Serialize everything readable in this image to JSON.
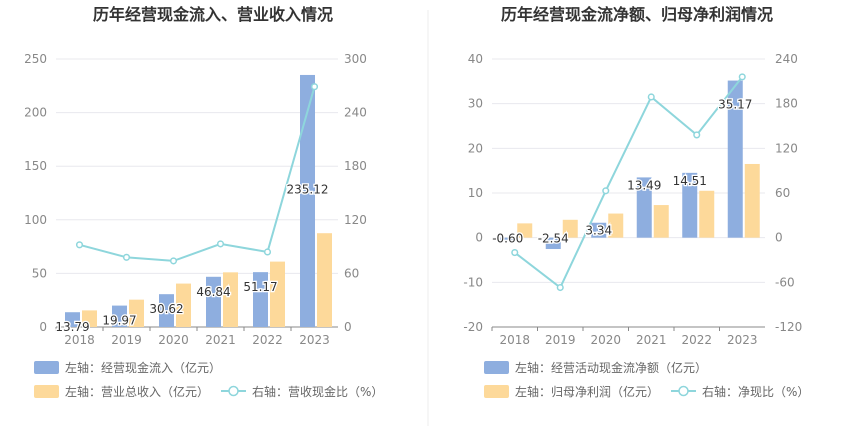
{
  "colors": {
    "bar_primary": "#8eaedf",
    "bar_secondary": "#fdd99a",
    "line": "#8ed6dc",
    "grid": "#e8e8ee",
    "axis": "#888888"
  },
  "chart_data": [
    {
      "type": "bar",
      "title": "历年经营现金流入、营业收入情况",
      "categories": [
        "2018",
        "2019",
        "2020",
        "2021",
        "2022",
        "2023"
      ],
      "left_axis": {
        "ticks": [
          0,
          50,
          100,
          150,
          200,
          250
        ],
        "ylim": [
          0,
          250
        ]
      },
      "right_axis": {
        "ticks": [
          0,
          60,
          120,
          180,
          240,
          300
        ],
        "ylim": [
          0,
          300
        ]
      },
      "series": [
        {
          "name": "左轴：经营现金流入（亿元）",
          "type": "bar",
          "axis": "left",
          "values": [
            13.79,
            19.97,
            30.62,
            46.84,
            51.17,
            235.12
          ],
          "labels": [
            "13.79",
            "19.97",
            "30.62",
            "46.84",
            "51.17",
            "235.12"
          ]
        },
        {
          "name": "左轴：营业总收入（亿元）",
          "type": "bar",
          "axis": "left",
          "values": [
            15.5,
            25.5,
            40.5,
            51,
            61,
            87.5
          ]
        },
        {
          "name": "右轴：营收现金比（%）",
          "type": "line",
          "axis": "right",
          "values": [
            92,
            78,
            74,
            93,
            84,
            269
          ]
        }
      ],
      "grid": true,
      "legend_position": "bottom-left"
    },
    {
      "type": "bar",
      "title": "历年经营现金流净额、归母净利润情况",
      "categories": [
        "2018",
        "2019",
        "2020",
        "2021",
        "2022",
        "2023"
      ],
      "left_axis": {
        "ticks": [
          -20,
          -10,
          0,
          10,
          20,
          30,
          40
        ],
        "ylim": [
          -20,
          40
        ]
      },
      "right_axis": {
        "ticks": [
          -120,
          -60,
          0,
          60,
          120,
          180,
          240
        ],
        "ylim": [
          -120,
          240
        ]
      },
      "series": [
        {
          "name": "左轴：经营活动现金流净额（亿元）",
          "type": "bar",
          "axis": "left",
          "values": [
            -0.6,
            -2.54,
            3.34,
            13.49,
            14.51,
            35.17
          ],
          "labels": [
            "-0.60",
            "-2.54",
            "3.34",
            "13.49",
            "14.51",
            "35.17"
          ]
        },
        {
          "name": "左轴：归母净利润（亿元）",
          "type": "bar",
          "axis": "left",
          "values": [
            3.2,
            4.0,
            5.4,
            7.3,
            10.5,
            16.5
          ]
        },
        {
          "name": "右轴：净现比（%）",
          "type": "line",
          "axis": "right",
          "values": [
            -20,
            -67,
            63,
            189,
            138,
            216
          ]
        }
      ],
      "grid": true,
      "legend_position": "bottom-left"
    }
  ]
}
